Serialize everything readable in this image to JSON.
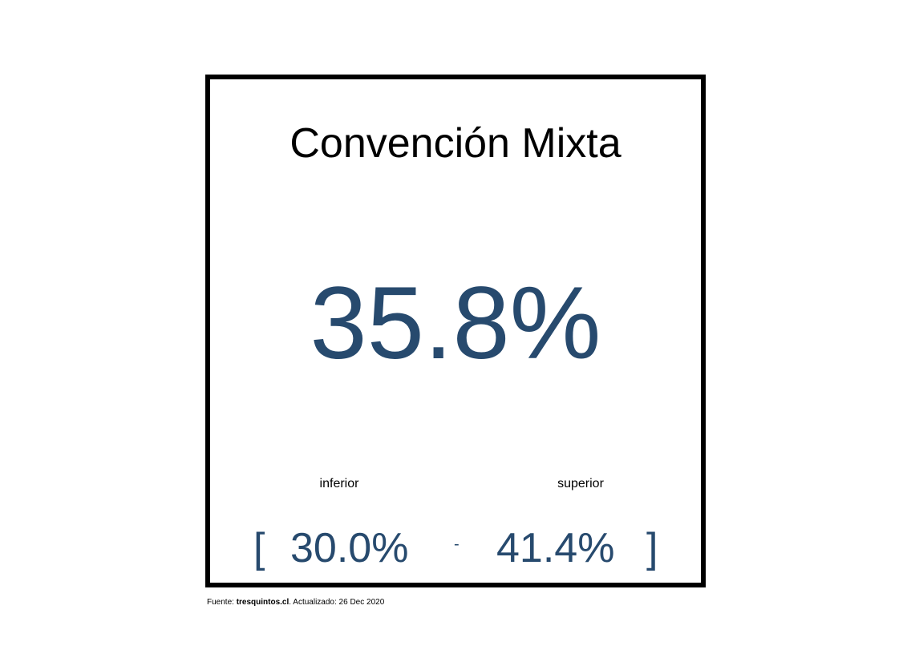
{
  "card": {
    "title": "Convención Mixta",
    "value": "35.8%",
    "interval": {
      "lower_label": "inferior",
      "upper_label": "superior",
      "open_bracket": "[",
      "lower_value": "30.0%",
      "separator": "-",
      "upper_value": "41.4%",
      "close_bracket": "]"
    }
  },
  "footer": {
    "source_prefix": "Fuente: ",
    "source_name": "tresquintos.cl",
    "updated_text": ". Actualizado: 26 Dec 2020"
  },
  "colors": {
    "value_color": "#274a6e",
    "border_color": "#000000"
  }
}
